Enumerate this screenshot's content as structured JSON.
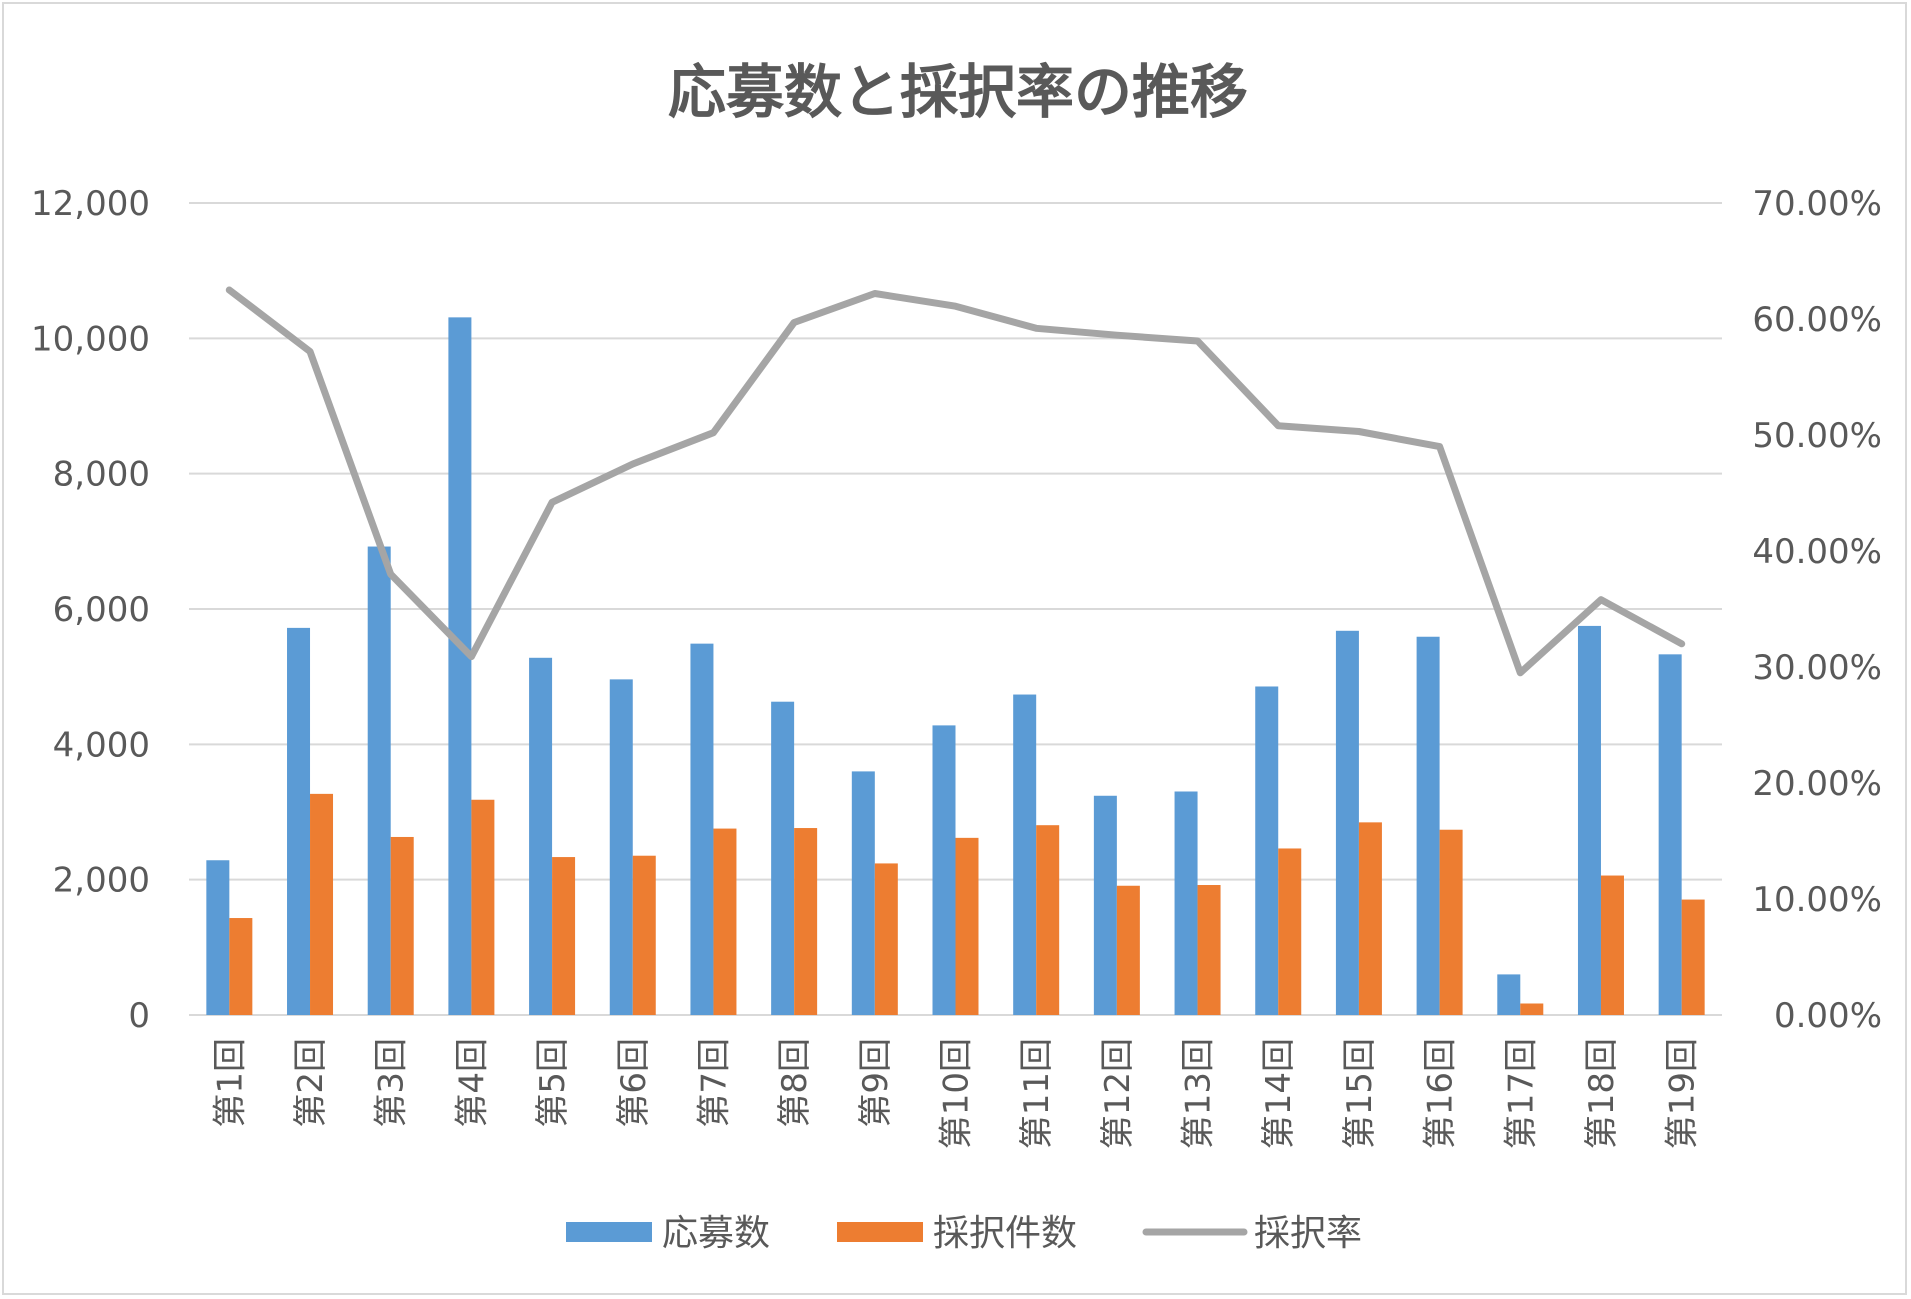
{
  "chart_data": {
    "type": "bar",
    "title": "応募数と採択率の推移",
    "categories": [
      "第1回",
      "第2回",
      "第3回",
      "第4回",
      "第5回",
      "第6回",
      "第7回",
      "第8回",
      "第9回",
      "第10回",
      "第11回",
      "第12回",
      "第13回",
      "第14回",
      "第15回",
      "第16回",
      "第17回",
      "第18回",
      "第19回"
    ],
    "series": [
      {
        "name": "応募数",
        "type": "bar",
        "axis": "left",
        "color": "#5b9bd5",
        "values": [
          2287,
          5721,
          6923,
          10310,
          5279,
          4960,
          5488,
          4630,
          3600,
          4280,
          4736,
          3240,
          3303,
          4855,
          5678,
          5590,
          600,
          5750,
          5330
        ]
      },
      {
        "name": "採択件数",
        "type": "bar",
        "axis": "left",
        "color": "#ed7d31",
        "values": [
          1433,
          3268,
          2631,
          3181,
          2334,
          2354,
          2755,
          2763,
          2240,
          2618,
          2805,
          1910,
          1921,
          2461,
          2847,
          2738,
          170,
          2061,
          1706
        ]
      },
      {
        "name": "採択率",
        "type": "line",
        "axis": "right",
        "color": "#a5a5a5",
        "values": [
          0.625,
          0.572,
          0.38,
          0.309,
          0.442,
          0.475,
          0.502,
          0.597,
          0.622,
          0.611,
          0.592,
          0.586,
          0.581,
          0.508,
          0.503,
          0.49,
          0.295,
          0.358,
          0.32
        ]
      }
    ],
    "y_left": {
      "min": 0,
      "max": 12000,
      "ticks": [
        "0",
        "2,000",
        "4,000",
        "6,000",
        "8,000",
        "10,000",
        "12,000"
      ]
    },
    "y_right": {
      "min": 0,
      "max": 0.7,
      "ticks": [
        "0.00%",
        "10.00%",
        "20.00%",
        "30.00%",
        "40.00%",
        "50.00%",
        "60.00%",
        "70.00%"
      ]
    },
    "grid": true,
    "legend": "bottom"
  }
}
